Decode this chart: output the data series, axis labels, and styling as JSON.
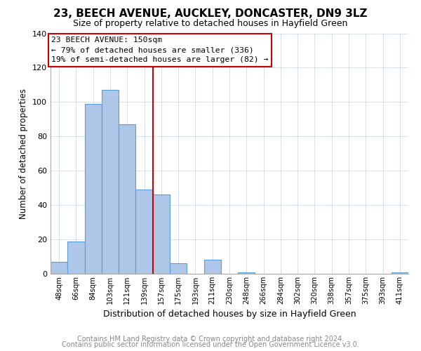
{
  "title": "23, BEECH AVENUE, AUCKLEY, DONCASTER, DN9 3LZ",
  "subtitle": "Size of property relative to detached houses in Hayfield Green",
  "xlabel": "Distribution of detached houses by size in Hayfield Green",
  "ylabel": "Number of detached properties",
  "bin_labels": [
    "48sqm",
    "66sqm",
    "84sqm",
    "103sqm",
    "121sqm",
    "139sqm",
    "157sqm",
    "175sqm",
    "193sqm",
    "211sqm",
    "230sqm",
    "248sqm",
    "266sqm",
    "284sqm",
    "302sqm",
    "320sqm",
    "338sqm",
    "357sqm",
    "375sqm",
    "393sqm",
    "411sqm"
  ],
  "bar_heights": [
    7,
    19,
    99,
    107,
    87,
    49,
    46,
    6,
    0,
    8,
    0,
    1,
    0,
    0,
    0,
    0,
    0,
    0,
    0,
    0,
    1
  ],
  "bar_color": "#aec6e8",
  "bar_edge_color": "#5a9fd4",
  "vertical_line_color": "#cc0000",
  "annotation_title": "23 BEECH AVENUE: 150sqm",
  "annotation_line1": "← 79% of detached houses are smaller (336)",
  "annotation_line2": "19% of semi-detached houses are larger (82) →",
  "annotation_box_color": "#ffffff",
  "annotation_box_edge": "#cc0000",
  "ylim": [
    0,
    140
  ],
  "yticks": [
    0,
    20,
    40,
    60,
    80,
    100,
    120,
    140
  ],
  "footer1": "Contains HM Land Registry data © Crown copyright and database right 2024.",
  "footer2": "Contains public sector information licensed under the Open Government Licence v3.0.",
  "title_fontsize": 11,
  "subtitle_fontsize": 9,
  "footer_fontsize": 7,
  "footer_color": "#888888"
}
